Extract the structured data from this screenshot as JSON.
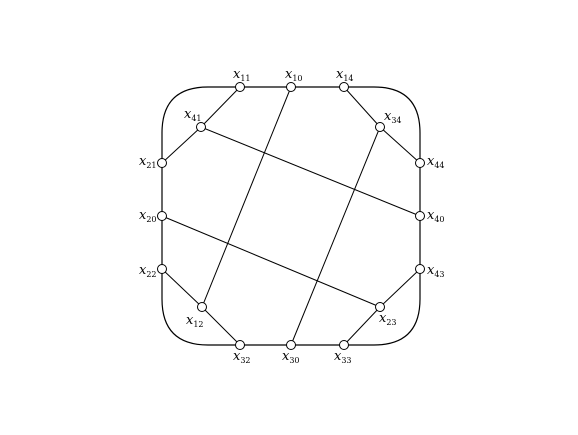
{
  "nodes": [
    {
      "id": "x11",
      "label": "x",
      "sub": "11"
    },
    {
      "id": "x10",
      "label": "x",
      "sub": "10"
    },
    {
      "id": "x14",
      "label": "x",
      "sub": "14"
    },
    {
      "id": "x41",
      "label": "x",
      "sub": "41"
    },
    {
      "id": "x34",
      "label": "x",
      "sub": "34"
    },
    {
      "id": "x21",
      "label": "x",
      "sub": "21"
    },
    {
      "id": "x44",
      "label": "x",
      "sub": "44"
    },
    {
      "id": "x20",
      "label": "x",
      "sub": "20"
    },
    {
      "id": "x40",
      "label": "x",
      "sub": "40"
    },
    {
      "id": "x22",
      "label": "x",
      "sub": "22"
    },
    {
      "id": "x43",
      "label": "x",
      "sub": "43"
    },
    {
      "id": "x12",
      "label": "x",
      "sub": "12"
    },
    {
      "id": "x23",
      "label": "x",
      "sub": "23"
    },
    {
      "id": "x32",
      "label": "x",
      "sub": "32"
    },
    {
      "id": "x30",
      "label": "x",
      "sub": "30"
    },
    {
      "id": "x33",
      "label": "x",
      "sub": "33"
    }
  ],
  "edges": [
    [
      "x11",
      "x41"
    ],
    [
      "x41",
      "x21"
    ],
    [
      "x14",
      "x34"
    ],
    [
      "x34",
      "x44"
    ],
    [
      "x22",
      "x12"
    ],
    [
      "x12",
      "x32"
    ],
    [
      "x43",
      "x23"
    ],
    [
      "x23",
      "x33"
    ],
    [
      "x10",
      "x12"
    ],
    [
      "x34",
      "x30"
    ],
    [
      "x41",
      "x40"
    ],
    [
      "x20",
      "x23"
    ]
  ]
}
